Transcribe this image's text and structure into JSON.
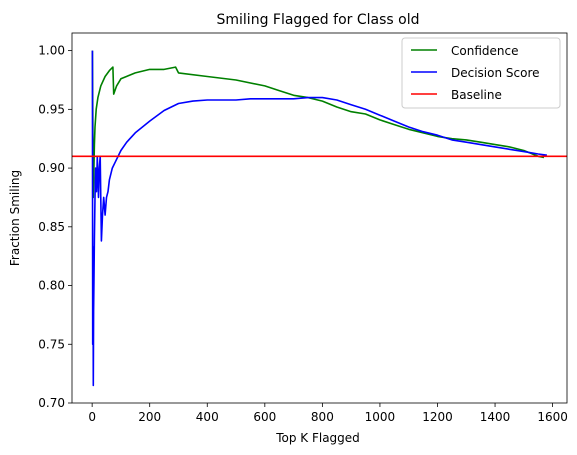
{
  "chart_data": {
    "type": "line",
    "title": "Smiling Flagged for Class old",
    "xlabel": "Top K Flagged",
    "ylabel": "Fraction Smiling",
    "xlim": [
      -70,
      1650
    ],
    "ylim": [
      0.7,
      1.015
    ],
    "xticks": [
      0,
      200,
      400,
      600,
      800,
      1000,
      1200,
      1400,
      1600
    ],
    "xtick_labels": [
      "0",
      "200",
      "400",
      "600",
      "800",
      "1000",
      "1200",
      "1400",
      "1600"
    ],
    "yticks": [
      0.7,
      0.75,
      0.8,
      0.85,
      0.9,
      0.95,
      1.0
    ],
    "ytick_labels": [
      "0.70",
      "0.75",
      "0.80",
      "0.85",
      "0.90",
      "0.95",
      "1.00"
    ],
    "grid": false,
    "legend_position": "top-right",
    "series": [
      {
        "name": "Confidence",
        "color": "#008000",
        "x": [
          1,
          4,
          6,
          8,
          10,
          14,
          20,
          30,
          45,
          60,
          72,
          75,
          85,
          100,
          150,
          200,
          250,
          290,
          300,
          400,
          500,
          600,
          650,
          700,
          750,
          800,
          850,
          900,
          950,
          1000,
          1050,
          1100,
          1150,
          1200,
          1250,
          1300,
          1350,
          1400,
          1450,
          1500,
          1550,
          1570
        ],
        "y": [
          1.0,
          0.875,
          0.9,
          0.92,
          0.935,
          0.95,
          0.96,
          0.97,
          0.978,
          0.983,
          0.986,
          0.963,
          0.97,
          0.976,
          0.981,
          0.984,
          0.984,
          0.986,
          0.981,
          0.978,
          0.975,
          0.97,
          0.966,
          0.962,
          0.96,
          0.957,
          0.952,
          0.948,
          0.946,
          0.941,
          0.937,
          0.933,
          0.93,
          0.927,
          0.925,
          0.924,
          0.922,
          0.92,
          0.918,
          0.915,
          0.91,
          0.909
        ]
      },
      {
        "name": "Decision Score",
        "color": "#0000ff",
        "x": [
          1,
          2,
          3,
          4,
          5,
          6,
          8,
          10,
          12,
          15,
          18,
          22,
          25,
          28,
          32,
          36,
          40,
          45,
          50,
          55,
          60,
          70,
          80,
          100,
          120,
          150,
          200,
          250,
          300,
          350,
          400,
          450,
          500,
          550,
          600,
          650,
          700,
          750,
          800,
          850,
          900,
          950,
          1000,
          1050,
          1100,
          1150,
          1200,
          1250,
          1300,
          1350,
          1400,
          1450,
          1500,
          1550,
          1580
        ],
        "y": [
          1.0,
          0.75,
          0.833,
          0.715,
          0.778,
          0.8,
          0.84,
          0.875,
          0.9,
          0.88,
          0.91,
          0.875,
          0.9,
          0.91,
          0.838,
          0.86,
          0.875,
          0.86,
          0.875,
          0.88,
          0.89,
          0.9,
          0.905,
          0.915,
          0.922,
          0.93,
          0.94,
          0.949,
          0.955,
          0.957,
          0.958,
          0.958,
          0.958,
          0.959,
          0.959,
          0.959,
          0.959,
          0.96,
          0.96,
          0.958,
          0.954,
          0.95,
          0.945,
          0.94,
          0.935,
          0.931,
          0.928,
          0.924,
          0.922,
          0.92,
          0.918,
          0.916,
          0.914,
          0.912,
          0.911
        ]
      },
      {
        "name": "Baseline",
        "color": "#ff0000",
        "y_constant": 0.91
      }
    ]
  }
}
